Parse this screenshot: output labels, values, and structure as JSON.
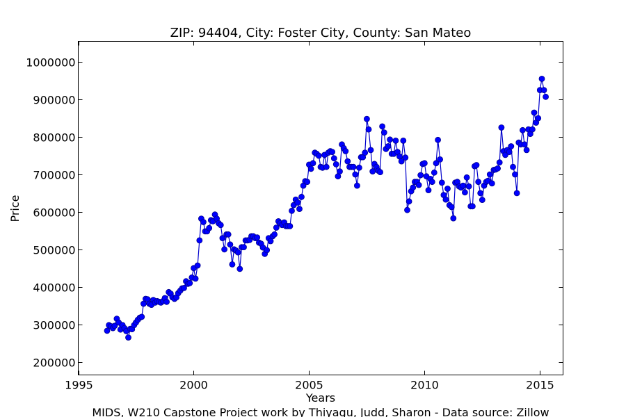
{
  "chart_data": {
    "type": "line",
    "title": "ZIP: 94404, City: Foster City, County: San Mateo",
    "xlabel": "Years",
    "ylabel": "Price",
    "footer": "MIDS, W210 Capstone Project work by Thiyagu, Judd, Sharon  -  Data source: Zillow",
    "xlim": [
      1995,
      2016
    ],
    "ylim": [
      165000,
      1055000
    ],
    "xticks": [
      1995,
      2000,
      2005,
      2010,
      2015
    ],
    "yticks": [
      200000,
      300000,
      400000,
      500000,
      600000,
      700000,
      800000,
      900000,
      1000000
    ],
    "grid": false,
    "series": [
      {
        "color": "#0000ff",
        "marker": "circle",
        "x": [
          1996.25,
          1996.33,
          1996.42,
          1996.5,
          1996.58,
          1996.67,
          1996.75,
          1996.83,
          1996.92,
          1997.0,
          1997.08,
          1997.17,
          1997.25,
          1997.33,
          1997.42,
          1997.5,
          1997.58,
          1997.67,
          1997.75,
          1997.83,
          1997.92,
          1998.0,
          1998.08,
          1998.17,
          1998.25,
          1998.33,
          1998.42,
          1998.5,
          1998.58,
          1998.67,
          1998.75,
          1998.83,
          1998.92,
          1999.0,
          1999.08,
          1999.17,
          1999.25,
          1999.33,
          1999.42,
          1999.5,
          1999.58,
          1999.67,
          1999.75,
          1999.83,
          1999.92,
          2000.0,
          2000.08,
          2000.17,
          2000.25,
          2000.33,
          2000.42,
          2000.5,
          2000.58,
          2000.67,
          2000.75,
          2000.83,
          2000.92,
          2001.0,
          2001.08,
          2001.17,
          2001.25,
          2001.33,
          2001.42,
          2001.5,
          2001.58,
          2001.67,
          2001.75,
          2001.83,
          2001.92,
          2002.0,
          2002.08,
          2002.17,
          2002.25,
          2002.33,
          2002.42,
          2002.5,
          2002.58,
          2002.67,
          2002.75,
          2002.83,
          2002.92,
          2003.0,
          2003.08,
          2003.17,
          2003.25,
          2003.33,
          2003.42,
          2003.5,
          2003.58,
          2003.67,
          2003.75,
          2003.83,
          2003.92,
          2004.0,
          2004.08,
          2004.17,
          2004.25,
          2004.33,
          2004.42,
          2004.5,
          2004.58,
          2004.67,
          2004.75,
          2004.83,
          2004.92,
          2005.0,
          2005.08,
          2005.17,
          2005.25,
          2005.33,
          2005.42,
          2005.5,
          2005.58,
          2005.67,
          2005.75,
          2005.83,
          2005.92,
          2006.0,
          2006.08,
          2006.17,
          2006.25,
          2006.33,
          2006.42,
          2006.5,
          2006.58,
          2006.67,
          2006.75,
          2006.83,
          2006.92,
          2007.0,
          2007.08,
          2007.17,
          2007.25,
          2007.33,
          2007.42,
          2007.5,
          2007.58,
          2007.67,
          2007.75,
          2007.83,
          2007.92,
          2008.0,
          2008.08,
          2008.17,
          2008.25,
          2008.33,
          2008.42,
          2008.5,
          2008.58,
          2008.67,
          2008.75,
          2008.83,
          2008.92,
          2009.0,
          2009.08,
          2009.17,
          2009.25,
          2009.33,
          2009.42,
          2009.5,
          2009.58,
          2009.67,
          2009.75,
          2009.83,
          2009.92,
          2010.0,
          2010.08,
          2010.17,
          2010.25,
          2010.33,
          2010.42,
          2010.5,
          2010.58,
          2010.67,
          2010.75,
          2010.83,
          2010.92,
          2011.0,
          2011.08,
          2011.17,
          2011.25,
          2011.33,
          2011.42,
          2011.5,
          2011.58,
          2011.67,
          2011.75,
          2011.83,
          2011.92,
          2012.0,
          2012.08,
          2012.17,
          2012.25,
          2012.33,
          2012.42,
          2012.5,
          2012.58,
          2012.67,
          2012.75,
          2012.83,
          2012.92,
          2013.0,
          2013.08,
          2013.17,
          2013.25,
          2013.33,
          2013.42,
          2013.5,
          2013.58,
          2013.67,
          2013.75,
          2013.83,
          2013.92,
          2014.0,
          2014.08,
          2014.17,
          2014.25,
          2014.33,
          2014.42,
          2014.5,
          2014.58,
          2014.67,
          2014.75,
          2014.83,
          2014.92,
          2015.0,
          2015.08,
          2015.17,
          2015.25
        ],
        "y": [
          283000,
          298000,
          295000,
          290000,
          296000,
          315000,
          305000,
          286000,
          298000,
          290000,
          282000,
          265000,
          288000,
          287000,
          298000,
          305000,
          312000,
          318000,
          320000,
          355000,
          368000,
          367000,
          355000,
          352000,
          365000,
          358000,
          362000,
          360000,
          358000,
          362000,
          370000,
          360000,
          386000,
          382000,
          372000,
          368000,
          372000,
          383000,
          390000,
          396000,
          397000,
          415000,
          408000,
          410000,
          425000,
          450000,
          422000,
          457000,
          524000,
          582000,
          573000,
          548000,
          548000,
          557000,
          578000,
          575000,
          593000,
          582000,
          570000,
          565000,
          530000,
          500000,
          540000,
          540000,
          513000,
          460000,
          500000,
          497000,
          492000,
          448000,
          506000,
          506000,
          524000,
          524000,
          525000,
          535000,
          535000,
          530000,
          532000,
          518000,
          515000,
          505000,
          488000,
          498000,
          530000,
          522000,
          535000,
          540000,
          558000,
          575000,
          570000,
          565000,
          572000,
          562000,
          562000,
          562000,
          603000,
          618000,
          633000,
          625000,
          608000,
          640000,
          670000,
          682000,
          680000,
          726000,
          715000,
          730000,
          758000,
          755000,
          750000,
          720000,
          718000,
          752000,
          720000,
          758000,
          762000,
          760000,
          743000,
          727000,
          695000,
          708000,
          780000,
          770000,
          762000,
          735000,
          720000,
          720000,
          720000,
          700000,
          670000,
          718000,
          746000,
          746000,
          758000,
          848000,
          820000,
          765000,
          708000,
          728000,
          720000,
          710000,
          706000,
          828000,
          812000,
          768000,
          775000,
          793000,
          755000,
          755000,
          790000,
          760000,
          748000,
          735000,
          790000,
          745000,
          605000,
          628000,
          655000,
          665000,
          680000,
          680000,
          672000,
          698000,
          728000,
          730000,
          695000,
          658000,
          688000,
          680000,
          705000,
          730000,
          792000,
          740000,
          678000,
          645000,
          633000,
          662000,
          618000,
          613000,
          583000,
          678000,
          680000,
          668000,
          665000,
          670000,
          652000,
          692000,
          668000,
          615000,
          615000,
          722000,
          725000,
          680000,
          650000,
          632000,
          670000,
          680000,
          683000,
          700000,
          676000,
          712000,
          713000,
          716000,
          732000,
          825000,
          762000,
          752000,
          765000,
          760000,
          775000,
          720000,
          700000,
          650000,
          785000,
          780000,
          818000,
          780000,
          765000,
          820000,
          808000,
          820000,
          865000,
          838000,
          850000,
          925000,
          955000,
          925000,
          907000
        ]
      }
    ]
  }
}
